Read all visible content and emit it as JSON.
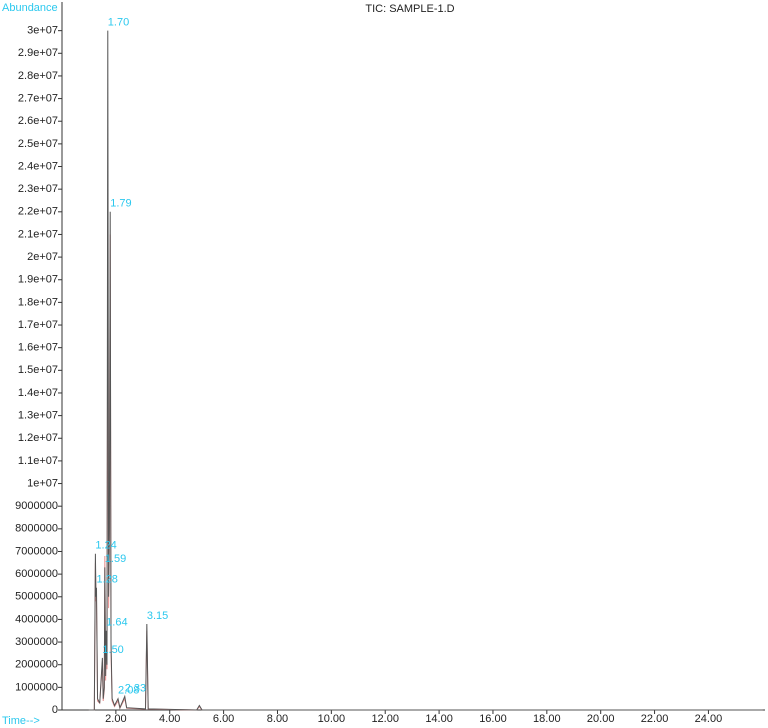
{
  "chart_data": {
    "type": "line",
    "title": "TIC: SAMPLE-1.D",
    "ylabel": "Abundance",
    "xlabel": "Time-->",
    "xlim": [
      0,
      26.1
    ],
    "ylim": [
      0,
      31000000
    ],
    "xticks": [
      {
        "value": 2,
        "label": "2.00"
      },
      {
        "value": 4,
        "label": "4.00"
      },
      {
        "value": 6,
        "label": "6.00"
      },
      {
        "value": 8,
        "label": "8.00"
      },
      {
        "value": 10,
        "label": "10.00"
      },
      {
        "value": 12,
        "label": "12.00"
      },
      {
        "value": 14,
        "label": "14.00"
      },
      {
        "value": 16,
        "label": "16.00"
      },
      {
        "value": 18,
        "label": "18.00"
      },
      {
        "value": 20,
        "label": "20.00"
      },
      {
        "value": 22,
        "label": "22.00"
      },
      {
        "value": 24,
        "label": "24.00"
      }
    ],
    "yticks": [
      0,
      1000000,
      2000000,
      3000000,
      4000000,
      5000000,
      6000000,
      7000000,
      8000000,
      9000000,
      {
        "value": 10000000,
        "label": "1e+07"
      },
      {
        "value": 11000000,
        "label": "1.1e+07"
      },
      {
        "value": 12000000,
        "label": "1.2e+07"
      },
      {
        "value": 13000000,
        "label": "1.3e+07"
      },
      {
        "value": 14000000,
        "label": "1.4e+07"
      },
      {
        "value": 15000000,
        "label": "1.5e+07"
      },
      {
        "value": 16000000,
        "label": "1.6e+07"
      },
      {
        "value": 17000000,
        "label": "1.7e+07"
      },
      {
        "value": 18000000,
        "label": "1.8e+07"
      },
      {
        "value": 19000000,
        "label": "1.9e+07"
      },
      {
        "value": 20000000,
        "label": "2e+07"
      },
      {
        "value": 21000000,
        "label": "2.1e+07"
      },
      {
        "value": 22000000,
        "label": "2.2e+07"
      },
      {
        "value": 23000000,
        "label": "2.3e+07"
      },
      {
        "value": 24000000,
        "label": "2.4e+07"
      },
      {
        "value": 25000000,
        "label": "2.5e+07"
      },
      {
        "value": 26000000,
        "label": "2.6e+07"
      },
      {
        "value": 27000000,
        "label": "2.7e+07"
      },
      {
        "value": 28000000,
        "label": "2.8e+07"
      },
      {
        "value": 29000000,
        "label": "2.9e+07"
      },
      {
        "value": 30000000,
        "label": "3e+07"
      }
    ],
    "x": [
      1.0,
      1.2,
      1.24,
      1.26,
      1.28,
      1.32,
      1.4,
      1.5,
      1.53,
      1.57,
      1.59,
      1.62,
      1.64,
      1.67,
      1.7,
      1.73,
      1.76,
      1.79,
      1.82,
      1.86,
      1.95,
      2.08,
      2.15,
      2.33,
      2.4,
      3.1,
      3.15,
      3.2,
      5.0,
      5.1,
      5.2,
      26.0
    ],
    "series": [
      {
        "color": "#e89090",
        "values": [
          0,
          0,
          6500000,
          4800000,
          5000000,
          400000,
          300000,
          2100000,
          400000,
          900000,
          6800000,
          1300000,
          3200000,
          1800000,
          21500000,
          4500000,
          7500000,
          21000000,
          2500000,
          400000,
          150000,
          400000,
          80000,
          500000,
          80000,
          40000,
          3500000,
          40000,
          0,
          150000,
          0,
          0
        ]
      },
      {
        "color": "#555555",
        "values": [
          0,
          0,
          6900000,
          5000000,
          5400000,
          500000,
          300000,
          2300000,
          500000,
          1000000,
          6300000,
          1500000,
          3500000,
          2000000,
          30000000,
          5000000,
          8000000,
          22000000,
          3000000,
          500000,
          200000,
          500000,
          100000,
          600000,
          100000,
          50000,
          3800000,
          50000,
          0,
          200000,
          0,
          0
        ]
      }
    ],
    "peak_labels": [
      {
        "label": "1.70",
        "x": 1.7,
        "y": 30000000
      },
      {
        "label": "1.79",
        "x": 1.79,
        "y": 22000000
      },
      {
        "label": "1.24",
        "x": 1.24,
        "y": 6900000
      },
      {
        "label": "1.59",
        "x": 1.59,
        "y": 6300000
      },
      {
        "label": "1.28",
        "x": 1.28,
        "y": 5400000
      },
      {
        "label": "1.64",
        "x": 1.64,
        "y": 3500000
      },
      {
        "label": "3.15",
        "x": 3.15,
        "y": 3800000
      },
      {
        "label": "1.50",
        "x": 1.5,
        "y": 2300000
      },
      {
        "label": "2.33",
        "x": 2.33,
        "y": 600000
      },
      {
        "label": "2.08",
        "x": 2.08,
        "y": 500000
      }
    ]
  }
}
